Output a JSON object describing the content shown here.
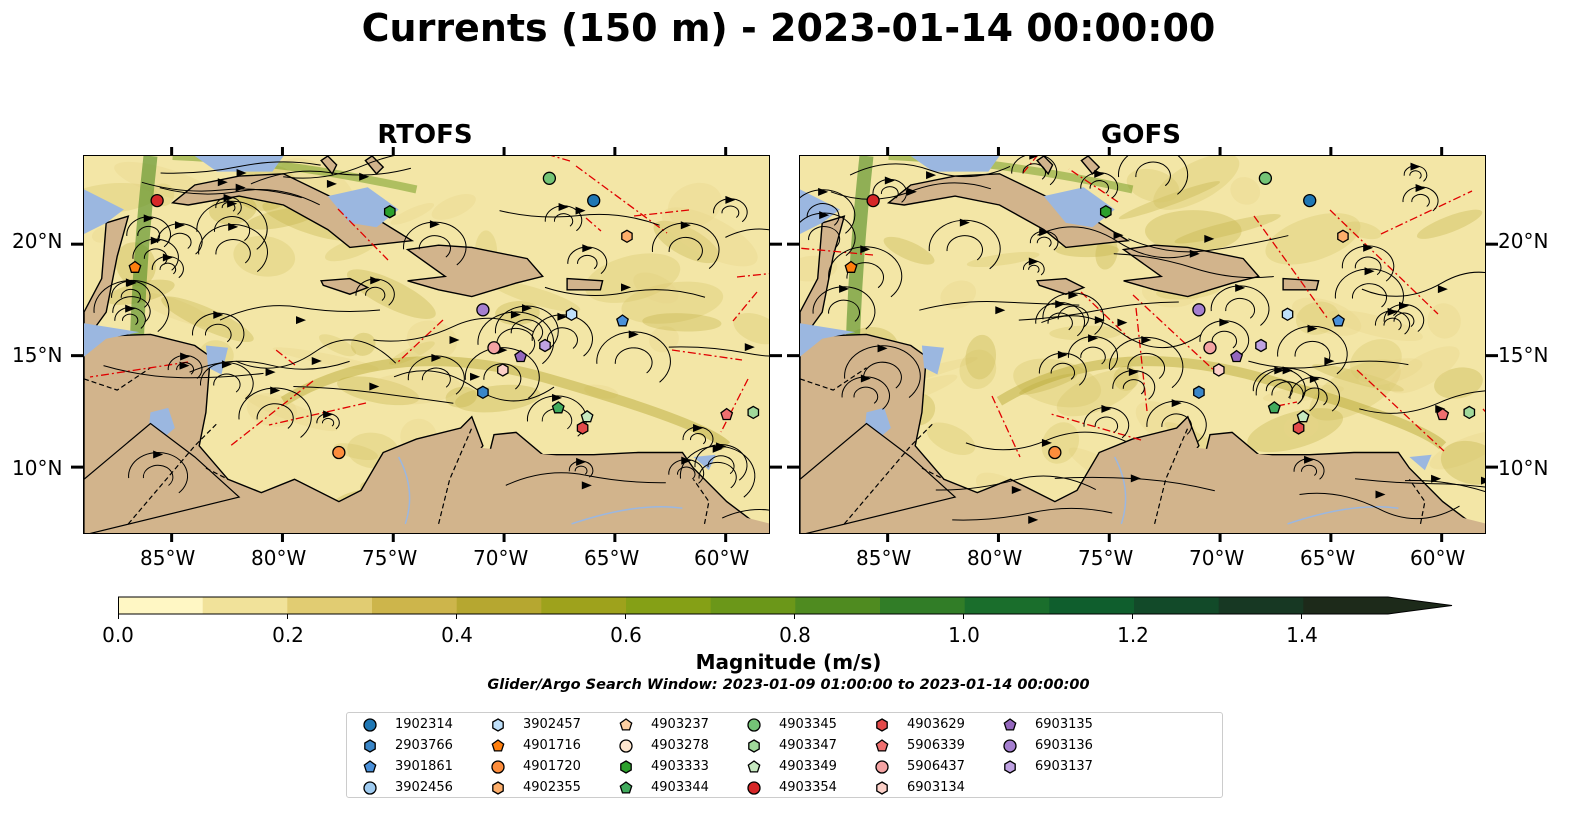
{
  "title": "Currents (150 m) - 2023-01-14 00:00:00",
  "panels": [
    {
      "title": "RTOFS"
    },
    {
      "title": "GOFS"
    }
  ],
  "lon_ticks": [
    "85°W",
    "80°W",
    "75°W",
    "70°W",
    "65°W",
    "60°W"
  ],
  "lat_ticks": [
    "20°N",
    "15°N",
    "10°N"
  ],
  "colorbar": {
    "label": "Magnitude (m/s)",
    "tick_labels": [
      "0.0",
      "0.2",
      "0.4",
      "0.6",
      "0.8",
      "1.0",
      "1.2",
      "1.4"
    ],
    "colors": [
      "#fff7c4",
      "#f1e29a",
      "#e1cc72",
      "#cdb54b",
      "#b6a730",
      "#9ea21c",
      "#85a016",
      "#6b9719",
      "#4f8b20",
      "#317d27",
      "#1a6e2c",
      "#0f5e2d",
      "#124a29",
      "#173823",
      "#1d2a1a"
    ]
  },
  "subtitle": "Glider/Argo Search Window: 2023-01-09 01:00:00 to 2023-01-14 00:00:00",
  "map_colors": {
    "ocean": "#f3e6a6",
    "land": "#d2b48c",
    "water": "#9bb7e0",
    "track": "#e00000"
  },
  "legend": [
    {
      "label": "1902314",
      "marker": "circle",
      "color": "#1f77b4"
    },
    {
      "label": "2903766",
      "marker": "hexagon",
      "color": "#3a86c8"
    },
    {
      "label": "3901861",
      "marker": "pentagon",
      "color": "#4a90d9"
    },
    {
      "label": "3902456",
      "marker": "circle",
      "color": "#9fcbf0"
    },
    {
      "label": "3902457",
      "marker": "hexagon",
      "color": "#bfe0fa"
    },
    {
      "label": "4901716",
      "marker": "pentagon",
      "color": "#ff7f0e"
    },
    {
      "label": "4901720",
      "marker": "circle",
      "color": "#fd8d3c"
    },
    {
      "label": "4902355",
      "marker": "hexagon",
      "color": "#fdae6b"
    },
    {
      "label": "4903237",
      "marker": "pentagon",
      "color": "#fdd0a2"
    },
    {
      "label": "4903278",
      "marker": "circle",
      "color": "#fee6ce"
    },
    {
      "label": "4903333",
      "marker": "hexagon",
      "color": "#2ca02c"
    },
    {
      "label": "4903344",
      "marker": "pentagon",
      "color": "#41ab5d"
    },
    {
      "label": "4903345",
      "marker": "circle",
      "color": "#74c476"
    },
    {
      "label": "4903347",
      "marker": "hexagon",
      "color": "#a1d99b"
    },
    {
      "label": "4903349",
      "marker": "pentagon",
      "color": "#c7e9c0"
    },
    {
      "label": "4903354",
      "marker": "circle",
      "color": "#d62728"
    },
    {
      "label": "4903629",
      "marker": "hexagon",
      "color": "#e34a4a"
    },
    {
      "label": "5906339",
      "marker": "pentagon",
      "color": "#ef6f6f"
    },
    {
      "label": "5906437",
      "marker": "circle",
      "color": "#f4a3a3"
    },
    {
      "label": "6903134",
      "marker": "hexagon",
      "color": "#fcd0c8"
    },
    {
      "label": "6903135",
      "marker": "pentagon",
      "color": "#9467bd"
    },
    {
      "label": "6903136",
      "marker": "circle",
      "color": "#a57fcf"
    },
    {
      "label": "6903137",
      "marker": "hexagon",
      "color": "#bfa2e2"
    }
  ],
  "floats": [
    {
      "id": "4903354",
      "lon": -85.7,
      "lat": 22.0
    },
    {
      "id": "4901716",
      "lon": -86.7,
      "lat": 19.0
    },
    {
      "id": "4903333",
      "lon": -75.2,
      "lat": 21.5
    },
    {
      "id": "4903345",
      "lon": -68.0,
      "lat": 23.0
    },
    {
      "id": "1902314",
      "lon": -66.0,
      "lat": 22.0
    },
    {
      "id": "4902355",
      "lon": -64.5,
      "lat": 20.4
    },
    {
      "id": "6903136",
      "lon": -71.0,
      "lat": 17.1
    },
    {
      "id": "3902457",
      "lon": -67.0,
      "lat": 16.9
    },
    {
      "id": "3901861",
      "lon": -64.7,
      "lat": 16.6
    },
    {
      "id": "5906437",
      "lon": -70.5,
      "lat": 15.4
    },
    {
      "id": "6903137",
      "lon": -68.2,
      "lat": 15.5
    },
    {
      "id": "6903135",
      "lon": -69.3,
      "lat": 15.0
    },
    {
      "id": "6903134",
      "lon": -70.1,
      "lat": 14.4
    },
    {
      "id": "2903766",
      "lon": -71.0,
      "lat": 13.4
    },
    {
      "id": "4903344",
      "lon": -67.6,
      "lat": 12.7
    },
    {
      "id": "4903349",
      "lon": -66.3,
      "lat": 12.3
    },
    {
      "id": "4903629",
      "lon": -66.5,
      "lat": 11.8
    },
    {
      "id": "5906339",
      "lon": -60.0,
      "lat": 12.4
    },
    {
      "id": "4903347",
      "lon": -58.8,
      "lat": 12.5
    },
    {
      "id": "4901720",
      "lon": -77.5,
      "lat": 10.7
    }
  ]
}
